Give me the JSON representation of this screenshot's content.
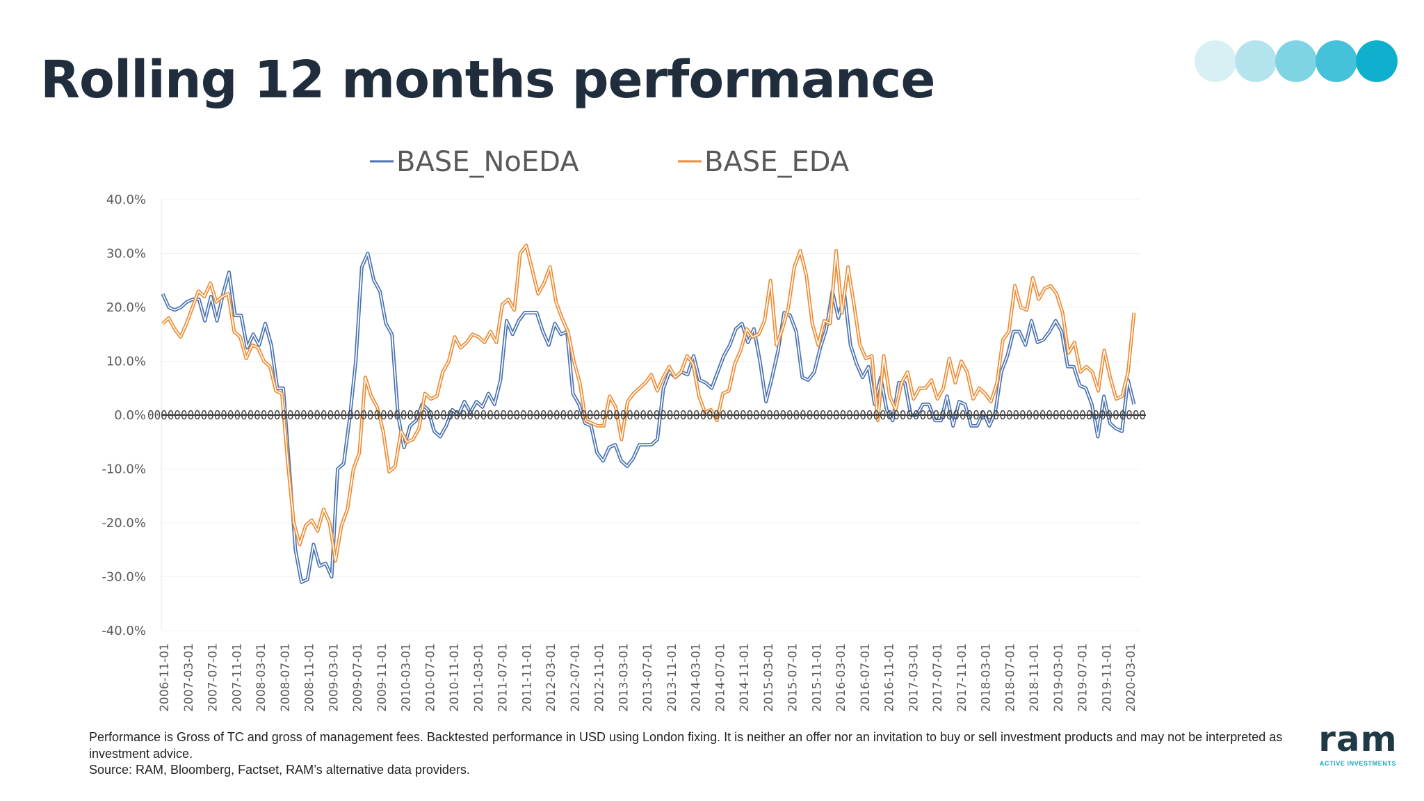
{
  "title": "Rolling 12 months performance",
  "dots": [
    "#d7f0f4",
    "#b3e4ee",
    "#7fd4e4",
    "#45c1da",
    "#0fb0cd"
  ],
  "disclaimer": "Performance is Gross of TC and gross of management fees. Backtested performance in USD using London fixing. It is neither an offer nor an invitation to buy or sell investment products and may not be interpreted as investment advice.",
  "source": "Source: RAM, Bloomberg, Factset, RAM’s alternative data providers.",
  "logo": {
    "word": "ram",
    "sub": "ACTIVE INVESTMENTS"
  },
  "chart_data": {
    "type": "line",
    "title": "",
    "ylim": [
      -40,
      40
    ],
    "ytick_values": [
      40,
      30,
      20,
      10,
      0,
      -10,
      -20,
      -30,
      -40
    ],
    "ytick_labels": [
      "40.0%",
      "30.0%",
      "20.0%",
      "10.0%",
      "0.0%",
      "-10.0%",
      "-20.0%",
      "-30.0%",
      "-40.0%"
    ],
    "x_start": "2006-11-01",
    "x_end": "2020-04-01",
    "xtick_labels": [
      "2006-11-01",
      "2007-03-01",
      "2007-07-01",
      "2007-11-01",
      "2008-03-01",
      "2008-07-01",
      "2008-11-01",
      "2009-03-01",
      "2009-07-01",
      "2009-11-01",
      "2010-03-01",
      "2010-07-01",
      "2010-11-01",
      "2011-03-01",
      "2011-07-01",
      "2011-11-01",
      "2012-03-01",
      "2012-07-01",
      "2012-11-01",
      "2013-03-01",
      "2013-07-01",
      "2013-11-01",
      "2014-03-01",
      "2014-07-01",
      "2014-11-01",
      "2015-03-01",
      "2015-07-01",
      "2015-11-01",
      "2016-03-01",
      "2016-07-01",
      "2016-11-01",
      "2017-03-01",
      "2017-07-01",
      "2017-11-01",
      "2018-03-01",
      "2018-07-01",
      "2018-11-01",
      "2019-03-01",
      "2019-07-01",
      "2019-11-01",
      "2020-03-01"
    ],
    "legend_position": "top",
    "series": [
      {
        "name": "BASE_NoEDA",
        "color": "#4a72b0",
        "values": [
          22.5,
          20,
          19.5,
          20,
          21,
          21.5,
          21.5,
          17.5,
          22,
          17.5,
          22.5,
          26.5,
          18.5,
          18.5,
          12.5,
          15,
          13,
          17,
          13,
          5,
          5,
          -10,
          -25,
          -31,
          -30.5,
          -24,
          -28,
          -27.5,
          -30,
          -10,
          -9,
          -0.5,
          10,
          27.5,
          30,
          25,
          23,
          17,
          15,
          0,
          -6,
          -2,
          -1,
          2,
          1,
          -3,
          -4,
          -2,
          1,
          0,
          2.5,
          0.5,
          2.5,
          1.5,
          4,
          2,
          6.5,
          17.5,
          15,
          17.5,
          19,
          19,
          19,
          15.5,
          13,
          17,
          15,
          15.5,
          4,
          2,
          -1.5,
          -2,
          -7,
          -8.5,
          -6,
          -5.5,
          -8.5,
          -9.5,
          -8,
          -5.5,
          -5.5,
          -5.5,
          -4.5,
          5,
          8,
          7,
          8,
          7.5,
          11,
          6.5,
          6,
          5,
          8,
          11,
          13,
          16,
          17,
          13.5,
          16,
          10,
          2.5,
          7,
          12,
          19,
          18.5,
          15.5,
          7,
          6.5,
          8,
          12.5,
          16,
          23,
          18,
          22.5,
          13,
          9.5,
          7,
          9,
          2,
          7,
          1,
          -1,
          6,
          6,
          0,
          0,
          2,
          2,
          -1,
          -1,
          3.5,
          -2,
          2.5,
          2,
          -2,
          -2,
          0.5,
          -2,
          0.5,
          8,
          11,
          15.5,
          15.5,
          13,
          17.5,
          13.5,
          14,
          15.5,
          17.5,
          15.5,
          9,
          9,
          5.5,
          5,
          2,
          -4,
          3.5,
          -1.5,
          -2.5,
          -3,
          6.5,
          2
        ]
      },
      {
        "name": "BASE_EDA",
        "color": "#ed8c34",
        "values": [
          17,
          18,
          16,
          14.5,
          17,
          20,
          23,
          22,
          24.5,
          21,
          22,
          22.5,
          15.5,
          14.5,
          10.5,
          13,
          12.5,
          10,
          9,
          4.5,
          4,
          -9,
          -20,
          -24,
          -20.5,
          -19.5,
          -21.5,
          -17.5,
          -20,
          -27,
          -20.5,
          -17.5,
          -10,
          -7,
          7,
          3.5,
          1.5,
          -3,
          -10.5,
          -9.5,
          -3,
          -5,
          -4.5,
          -2.5,
          4,
          3,
          3.5,
          8,
          10,
          14.5,
          12.5,
          13.5,
          15,
          14.5,
          13.5,
          15.5,
          13.5,
          20.5,
          21.5,
          19.5,
          30,
          31.5,
          27,
          22.5,
          24.5,
          27.5,
          21,
          18,
          15.5,
          10,
          6,
          -1,
          -1.5,
          -2,
          -2,
          3.5,
          1.5,
          -4.5,
          2.5,
          4,
          5,
          6,
          7.5,
          4.5,
          7,
          9,
          7,
          8,
          11,
          9.5,
          3.5,
          0.5,
          1,
          -1,
          4,
          4.5,
          9.5,
          12,
          16,
          14.5,
          15,
          17.5,
          25,
          13,
          16,
          20,
          27.5,
          30.5,
          26,
          17,
          13,
          17.5,
          17,
          30.5,
          19,
          27.5,
          20.5,
          13,
          10.5,
          11,
          -1,
          11,
          3.5,
          1,
          6,
          8,
          3,
          5,
          5,
          6.5,
          3,
          5,
          10.5,
          6,
          10,
          8,
          3,
          5,
          4,
          2.5,
          6,
          14,
          15.5,
          24,
          20,
          19.5,
          25.5,
          21.5,
          23.5,
          24,
          22.5,
          19,
          11.5,
          13.5,
          8,
          9,
          8,
          4.5,
          12,
          7,
          3,
          3.5,
          8,
          19
        ]
      }
    ]
  }
}
